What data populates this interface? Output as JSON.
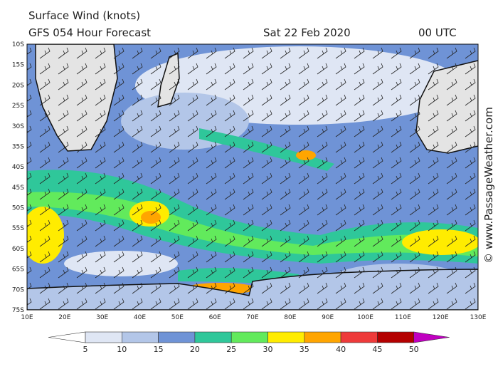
{
  "header": {
    "title": "Surface Wind (knots)",
    "subtitle": "GFS 054 Hour Forecast",
    "date": "Sat 22 Feb 2020",
    "time": "00 UTC"
  },
  "credit": "© www.PassageWeather.com",
  "map": {
    "lat_labels": [
      "10S",
      "15S",
      "20S",
      "25S",
      "30S",
      "35S",
      "40S",
      "45S",
      "50S",
      "55S",
      "60S",
      "65S",
      "70S",
      "75S"
    ],
    "lon_labels": [
      "10E",
      "20E",
      "30E",
      "40E",
      "50E",
      "60E",
      "70E",
      "80E",
      "90E",
      "100E",
      "110E",
      "120E",
      "130E"
    ]
  },
  "legend": {
    "labels": [
      5,
      10,
      15,
      20,
      25,
      30,
      35,
      40,
      45,
      50
    ],
    "colors": [
      "#ffffff",
      "#dfe6f4",
      "#b3c6e8",
      "#6f93d6",
      "#2fc79a",
      "#62ea5c",
      "#ffec00",
      "#ffa500",
      "#ee3a3a",
      "#b40000",
      "#c000c0"
    ]
  }
}
